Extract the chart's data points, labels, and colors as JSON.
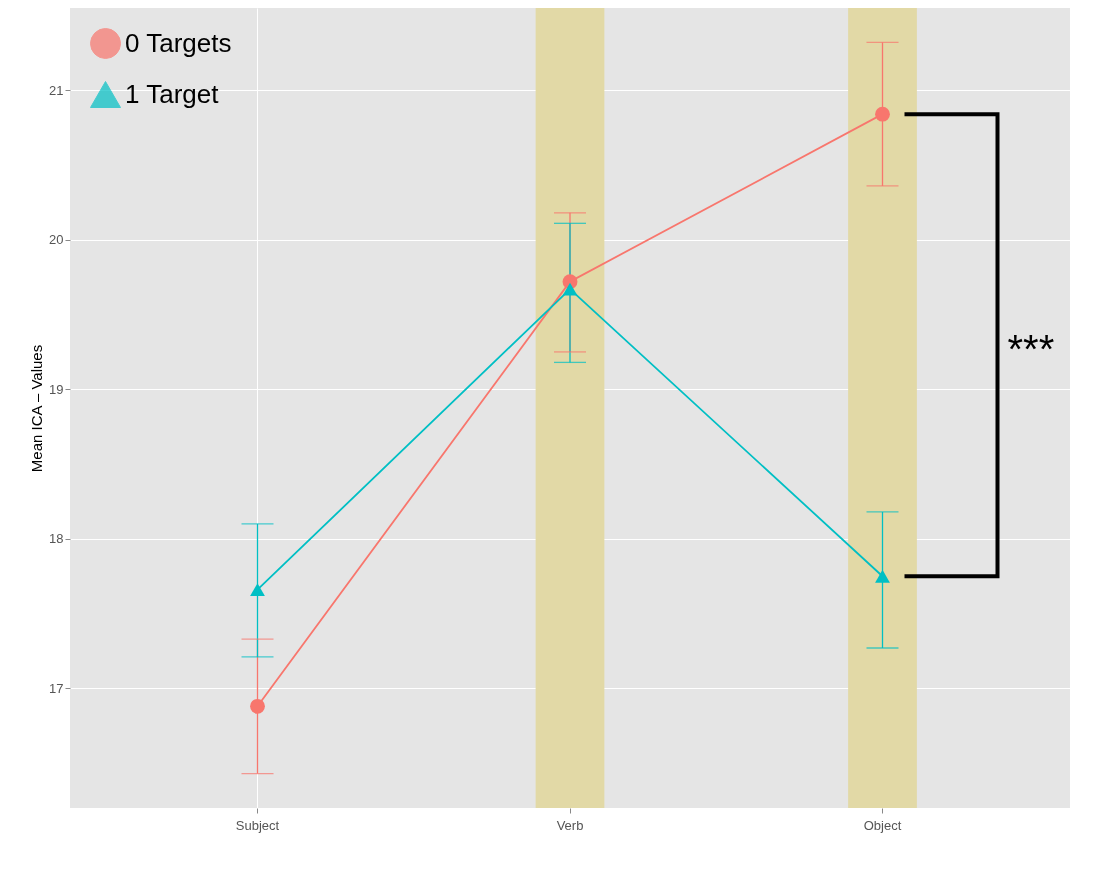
{
  "chart_data": {
    "type": "line",
    "ylabel": "Mean ICA – Values",
    "categories": [
      "Subject",
      "Verb",
      "Object"
    ],
    "series": [
      {
        "name": "0 Targets",
        "color": "#f8766d",
        "marker": "circle",
        "values": [
          16.88,
          19.72,
          20.84
        ],
        "errors": [
          [
            16.43,
            17.33
          ],
          [
            19.25,
            20.18
          ],
          [
            20.36,
            21.32
          ]
        ]
      },
      {
        "name": "1 Target",
        "color": "#00bfc4",
        "marker": "triangle",
        "values": [
          17.66,
          19.67,
          17.75
        ],
        "errors": [
          [
            17.21,
            18.1
          ],
          [
            19.18,
            20.11
          ],
          [
            17.27,
            18.18
          ]
        ]
      }
    ],
    "bands": [
      {
        "axis": "x",
        "from": "Verb",
        "to": "Verb",
        "color": "#e2d9a6"
      },
      {
        "axis": "x",
        "from": "Object",
        "to": "Object",
        "color": "#e2d9a6"
      }
    ],
    "annotations": [
      "***"
    ],
    "ylim": [
      16.2,
      21.55
    ],
    "yticks": [
      17,
      18,
      19,
      20,
      21
    ],
    "grid": true,
    "legend": "top left"
  }
}
